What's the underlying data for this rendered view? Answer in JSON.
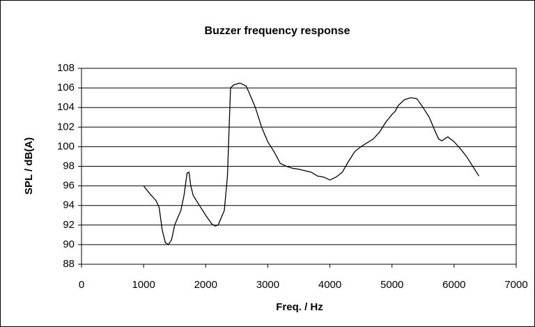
{
  "chart_data": {
    "type": "line",
    "title": "Buzzer frequency response",
    "xlabel": "Freq. / Hz",
    "ylabel": "SPL / dB(A)",
    "xlim": [
      0,
      7000
    ],
    "xticks": [
      0,
      1000,
      2000,
      3000,
      4000,
      5000,
      6000,
      7000
    ],
    "ylim": [
      88,
      108
    ],
    "yticks": [
      88,
      90,
      92,
      94,
      96,
      98,
      100,
      102,
      104,
      106,
      108
    ],
    "grid": true,
    "series": [
      {
        "name": "SPL",
        "color": "#000000",
        "x": [
          1000,
          1100,
          1200,
          1250,
          1300,
          1350,
          1400,
          1450,
          1500,
          1600,
          1650,
          1700,
          1730,
          1760,
          1800,
          1900,
          2000,
          2100,
          2150,
          2200,
          2300,
          2350,
          2400,
          2450,
          2550,
          2650,
          2700,
          2800,
          2900,
          3000,
          3100,
          3200,
          3300,
          3400,
          3500,
          3700,
          3800,
          3900,
          4000,
          4100,
          4200,
          4300,
          4400,
          4500,
          4700,
          4800,
          4900,
          5000,
          5050,
          5100,
          5200,
          5300,
          5400,
          5500,
          5600,
          5700,
          5750,
          5800,
          5900,
          6000,
          6100,
          6200,
          6300,
          6400
        ],
        "values": [
          96,
          95.2,
          94.5,
          93.8,
          91.5,
          90.2,
          90,
          90.5,
          92,
          93.5,
          95,
          97.3,
          97.4,
          96,
          95,
          94,
          93,
          92.1,
          91.9,
          92,
          93.5,
          97,
          106,
          106.3,
          106.5,
          106.2,
          105.5,
          104,
          102,
          100.5,
          99.5,
          98.3,
          98,
          97.8,
          97.7,
          97.4,
          97,
          96.9,
          96.6,
          96.9,
          97.4,
          98.5,
          99.5,
          100,
          100.8,
          101.5,
          102.5,
          103.3,
          103.6,
          104.2,
          104.8,
          105,
          104.9,
          104,
          103,
          101.5,
          100.8,
          100.6,
          101,
          100.5,
          99.8,
          99,
          98,
          97
        ]
      }
    ]
  }
}
